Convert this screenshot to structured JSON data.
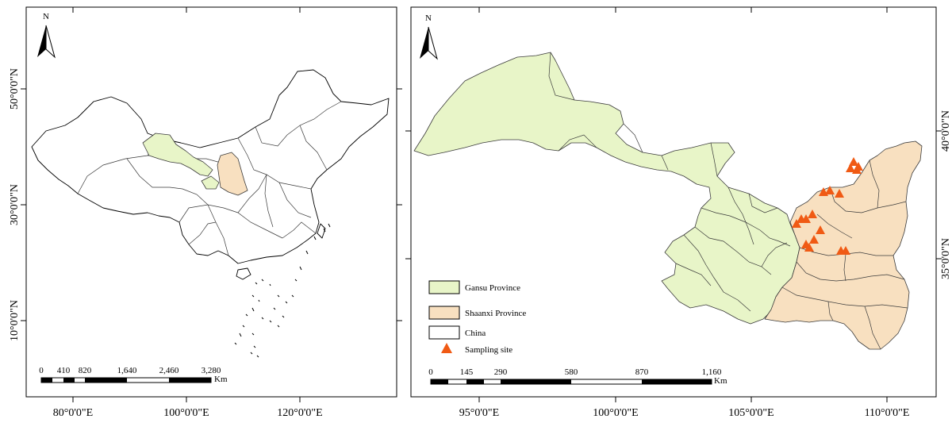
{
  "left_map": {
    "north_label": "N",
    "lon_labels": [
      "80°0'0\"E",
      "100°0'0\"E",
      "120°0'0\"E"
    ],
    "lat_labels": [
      "50°0'0\"N",
      "30°0'0\"N",
      "10°0'0\"N"
    ],
    "scale": {
      "ticks": [
        "0",
        "410",
        "820",
        "1,640",
        "2,460",
        "3,280"
      ],
      "unit": "Km"
    }
  },
  "right_map": {
    "north_label": "N",
    "lon_labels": [
      "95°0'0\"E",
      "100°0'0\"E",
      "105°0'0\"E",
      "110°0'0\"E"
    ],
    "lat_labels": [
      "40°0'0\"N",
      "35°0'0\"N"
    ],
    "scale": {
      "ticks": [
        "0",
        "145",
        "290",
        "580",
        "870",
        "1,160"
      ],
      "unit": "Km"
    },
    "legend": [
      {
        "label": "Gansu Province",
        "color": "#e8f5c8"
      },
      {
        "label": "Shaanxi Province",
        "color": "#f8e0c0"
      },
      {
        "label": "China",
        "color": "#ffffff"
      },
      {
        "label": "Sampling site",
        "color": "#f05a14"
      }
    ]
  },
  "colors": {
    "gansu": "#e8f5c8",
    "shaanxi": "#f8e0c0",
    "site": "#f05a14"
  }
}
